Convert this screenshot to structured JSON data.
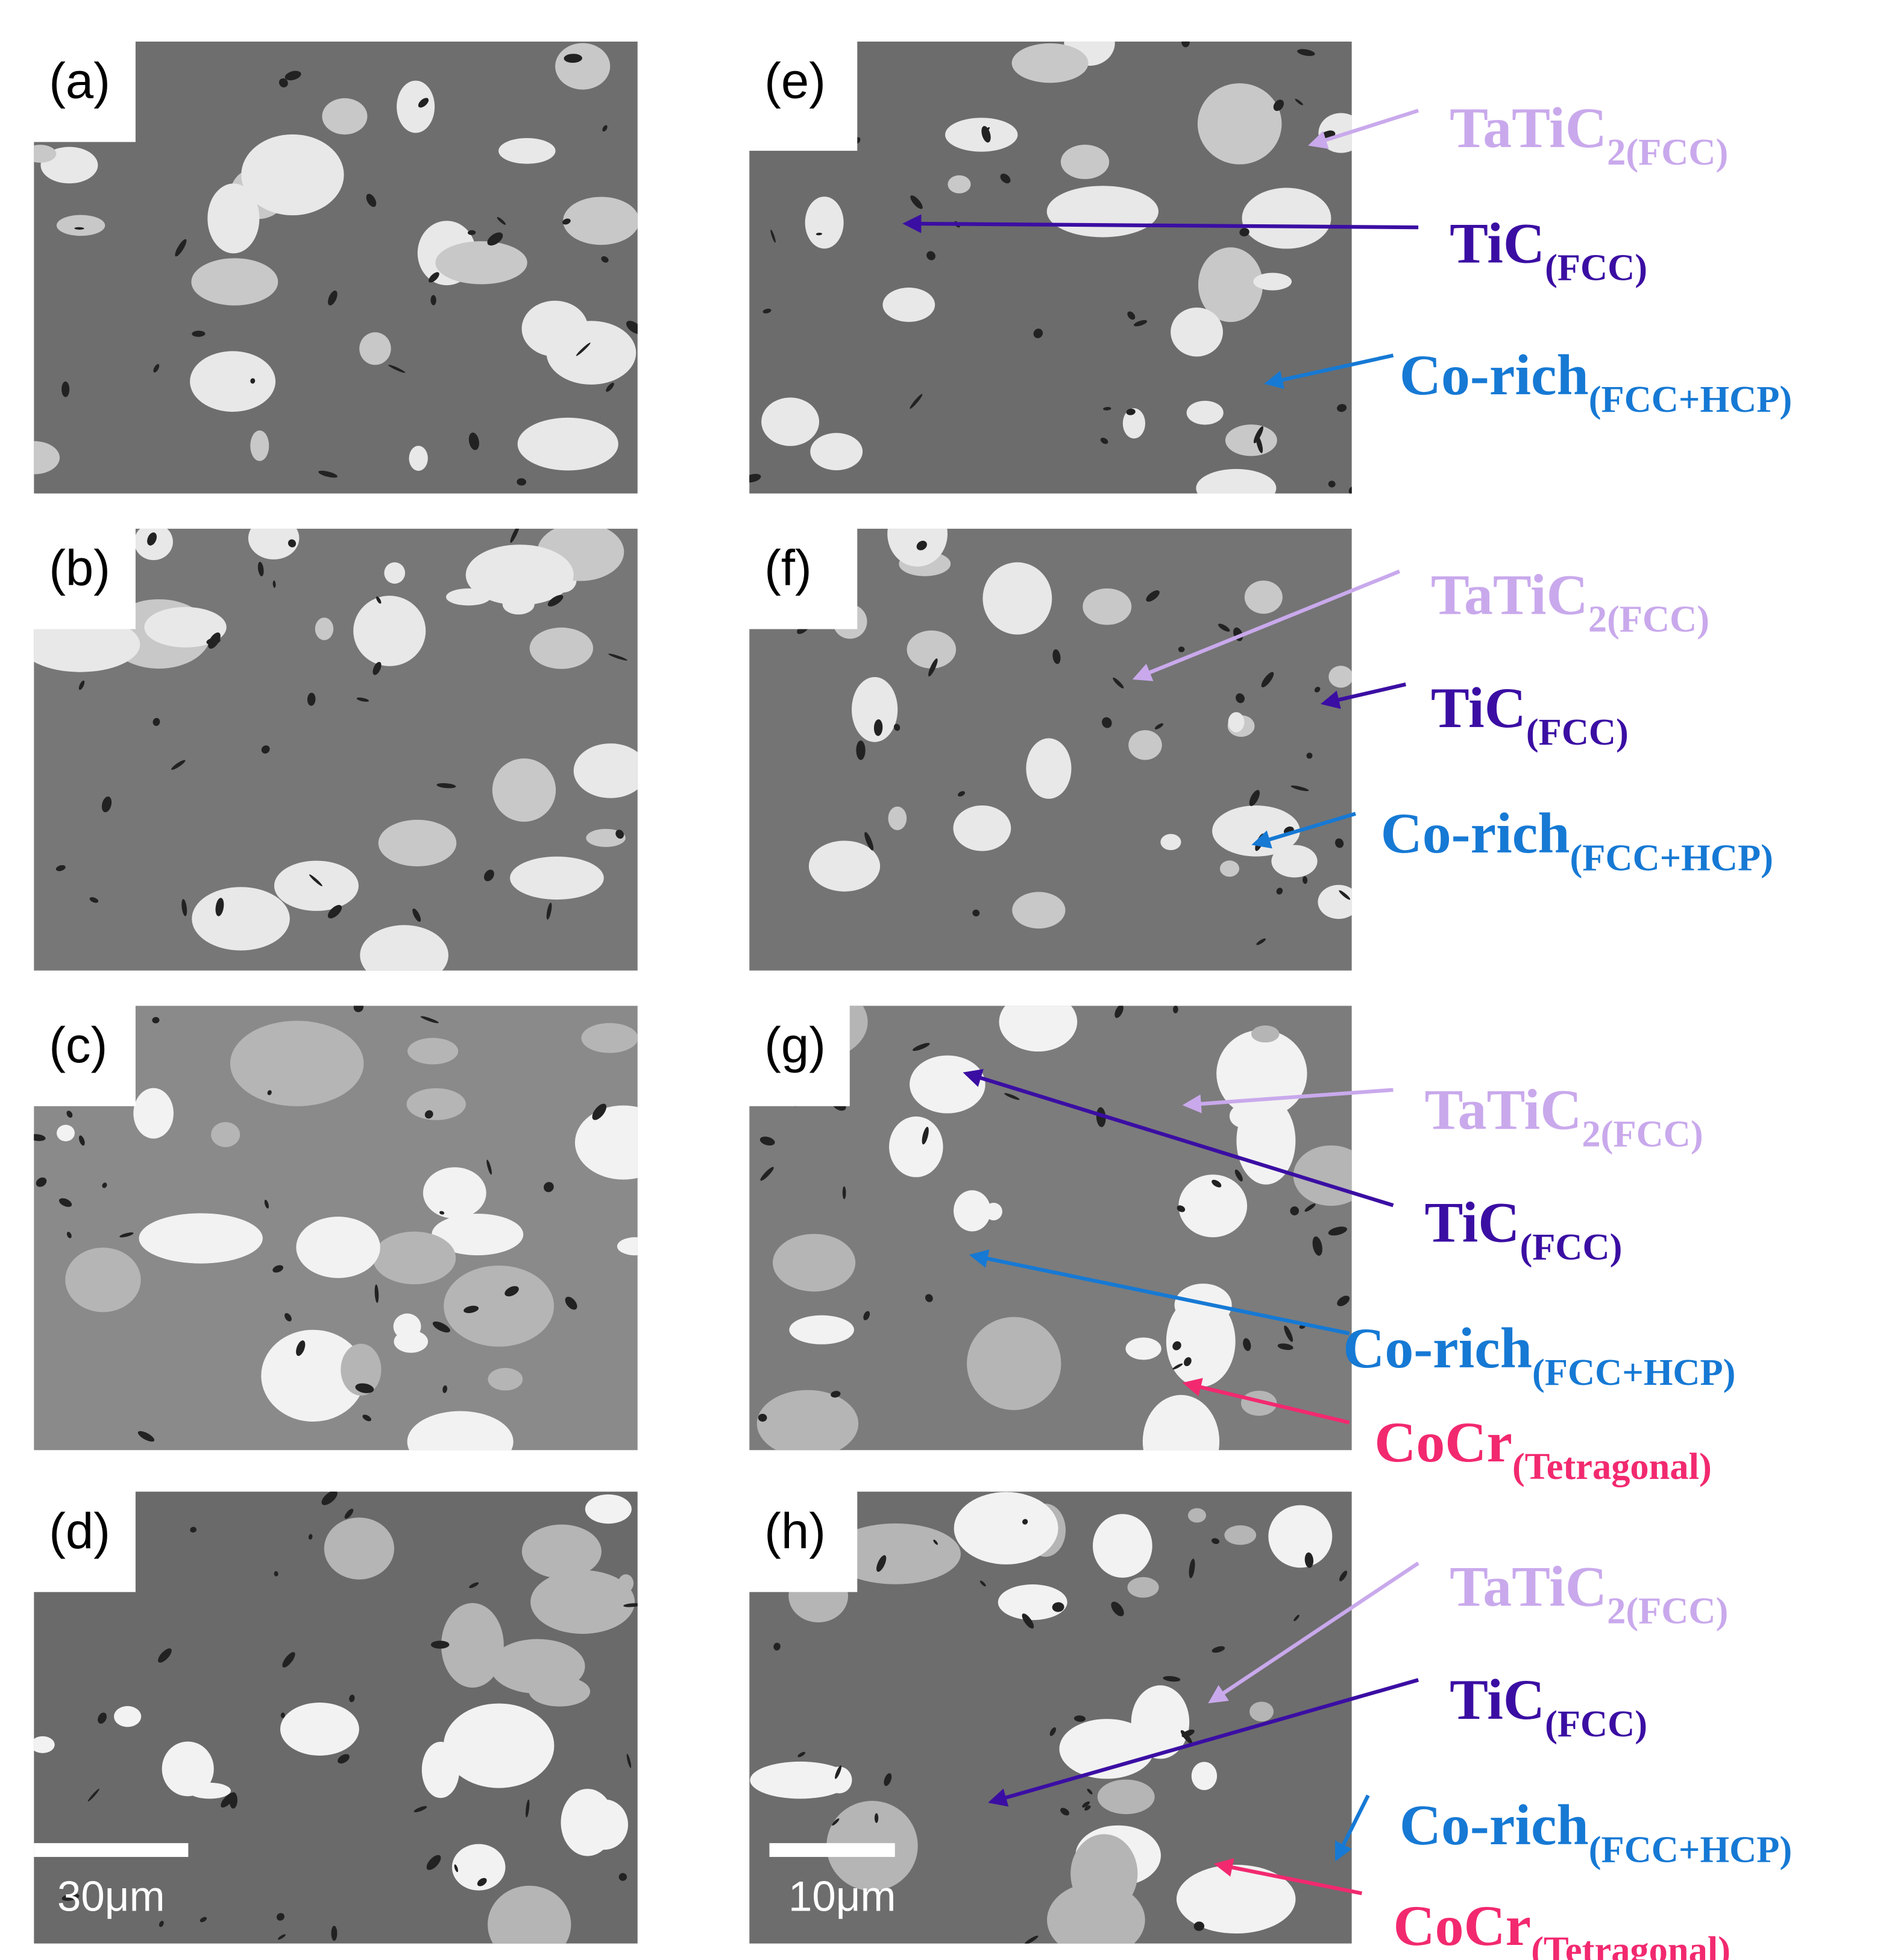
{
  "panels": [
    {
      "label": "(a)"
    },
    {
      "label": "(b)"
    },
    {
      "label": "(c)"
    },
    {
      "label": "(d)",
      "scale_bar": "30μm"
    },
    {
      "label": "(e)",
      "annotations": [
        {
          "main": "TaTiC",
          "sub": "2(FCC)",
          "color": "#c9a9ec"
        },
        {
          "main": "TiC",
          "sub": "(FCC)",
          "color": "#3b0ea3"
        },
        {
          "main": "Co-rich",
          "sub": "(FCC+HCP)",
          "color": "#1679d4"
        }
      ]
    },
    {
      "label": "(f)",
      "annotations": [
        {
          "main": "TaTiC",
          "sub": "2(FCC)",
          "color": "#c9a9ec"
        },
        {
          "main": "TiC",
          "sub": "(FCC)",
          "color": "#3b0ea3"
        },
        {
          "main": "Co-rich",
          "sub": "(FCC+HCP)",
          "color": "#1679d4"
        }
      ]
    },
    {
      "label": "(g)",
      "annotations": [
        {
          "main": "TaTiC",
          "sub": "2(FCC)",
          "color": "#c9a9ec"
        },
        {
          "main": "TiC",
          "sub": "(FCC)",
          "color": "#3b0ea3"
        },
        {
          "main": "Co-rich",
          "sub": "(FCC+HCP)",
          "color": "#1679d4"
        },
        {
          "main": "CoCr",
          "sub": "(Tetragonal)",
          "color": "#f2296f"
        }
      ]
    },
    {
      "label": "(h)",
      "scale_bar": "10μm",
      "annotations": [
        {
          "main": "TaTiC",
          "sub": "2(FCC)",
          "color": "#c9a9ec"
        },
        {
          "main": "TiC",
          "sub": "(FCC)",
          "color": "#3b0ea3"
        },
        {
          "main": "Co-rich",
          "sub": "(FCC+HCP)",
          "color": "#1679d4"
        },
        {
          "main": "CoCr",
          "sub": "(Tetragonal)",
          "color": "#f2296f"
        }
      ]
    }
  ]
}
